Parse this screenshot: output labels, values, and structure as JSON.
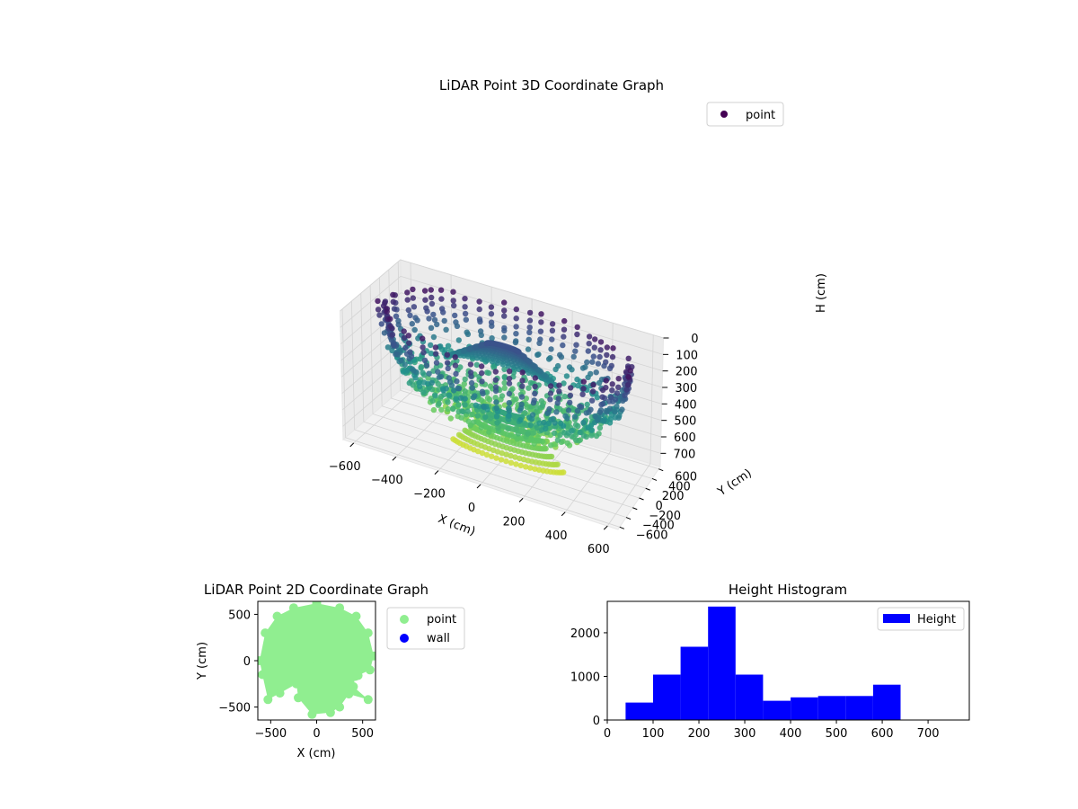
{
  "chart_data": [
    {
      "type": "scatter",
      "projection": "3d",
      "title": "LiDAR Point 3D Coordinate Graph",
      "xlabel": "X (cm)",
      "ylabel": "Y (cm)",
      "zlabel": "H (cm)",
      "xlim": [
        -650,
        650
      ],
      "ylim": [
        -650,
        650
      ],
      "zlim": [
        780,
        0
      ],
      "z_inverted": true,
      "xticks": [
        "−600",
        "−400",
        "−200",
        "0",
        "200",
        "400",
        "600"
      ],
      "yticks": [
        "−600",
        "−400",
        "−200",
        "0",
        "200",
        "400",
        "600"
      ],
      "zticks": [
        "0",
        "100",
        "200",
        "300",
        "400",
        "500",
        "600",
        "700"
      ],
      "legend": {
        "entries": [
          "point"
        ],
        "placement": "top-right"
      },
      "colormap": "viridis",
      "grid": true,
      "series": [
        {
          "name": "point",
          "color": "#440154",
          "structure": "bowl-shaped point cloud: outer ring of radius ~600 cm near H 100–400 cm sweeping down to H ~700 cm at center, plus two dense clusters near the center"
        }
      ]
    },
    {
      "type": "scatter",
      "title": "LiDAR Point 2D Coordinate Graph",
      "xlabel": "X (cm)",
      "ylabel": "Y (cm)",
      "xlim": [
        -640,
        640
      ],
      "ylim": [
        -640,
        640
      ],
      "xticks": [
        "−500",
        "0",
        "500"
      ],
      "yticks": [
        "−500",
        "0",
        "500"
      ],
      "legend": {
        "entries": [
          "point",
          "wall"
        ],
        "placement": "outside-right"
      },
      "series": [
        {
          "name": "point",
          "color": "#90ee90",
          "points": [
            [
              0,
              620
            ],
            [
              250,
              570
            ],
            [
              430,
              480
            ],
            [
              560,
              300
            ],
            [
              620,
              50
            ],
            [
              580,
              -100
            ],
            [
              450,
              -160
            ],
            [
              420,
              -170
            ],
            [
              400,
              -280
            ],
            [
              560,
              -420
            ],
            [
              350,
              -360
            ],
            [
              250,
              -500
            ],
            [
              150,
              -560
            ],
            [
              -50,
              -580
            ],
            [
              -200,
              -400
            ],
            [
              -220,
              -250
            ],
            [
              -400,
              -350
            ],
            [
              -530,
              -420
            ],
            [
              -590,
              -150
            ],
            [
              -620,
              0
            ],
            [
              -560,
              300
            ],
            [
              -430,
              480
            ],
            [
              -250,
              570
            ],
            [
              0,
              0
            ],
            [
              100,
              200
            ],
            [
              -100,
              -100
            ]
          ]
        },
        {
          "name": "wall",
          "color": "#0000ff",
          "points": []
        }
      ]
    },
    {
      "type": "bar",
      "title": "Height Histogram",
      "legend": {
        "entries": [
          "Height"
        ],
        "placement": "top-right"
      },
      "xlim": [
        0,
        790
      ],
      "ylim": [
        0,
        2720
      ],
      "xticks": [
        "0",
        "100",
        "200",
        "300",
        "400",
        "500",
        "600",
        "700"
      ],
      "yticks": [
        "0",
        "1000",
        "2000"
      ],
      "bin_edges": [
        40,
        100,
        160,
        220,
        280,
        340,
        400,
        460,
        520,
        580,
        640
      ],
      "series": [
        {
          "name": "Height",
          "color": "#0000ff",
          "values": [
            400,
            1040,
            1680,
            2600,
            1040,
            440,
            520,
            550,
            550,
            810
          ]
        }
      ]
    }
  ]
}
